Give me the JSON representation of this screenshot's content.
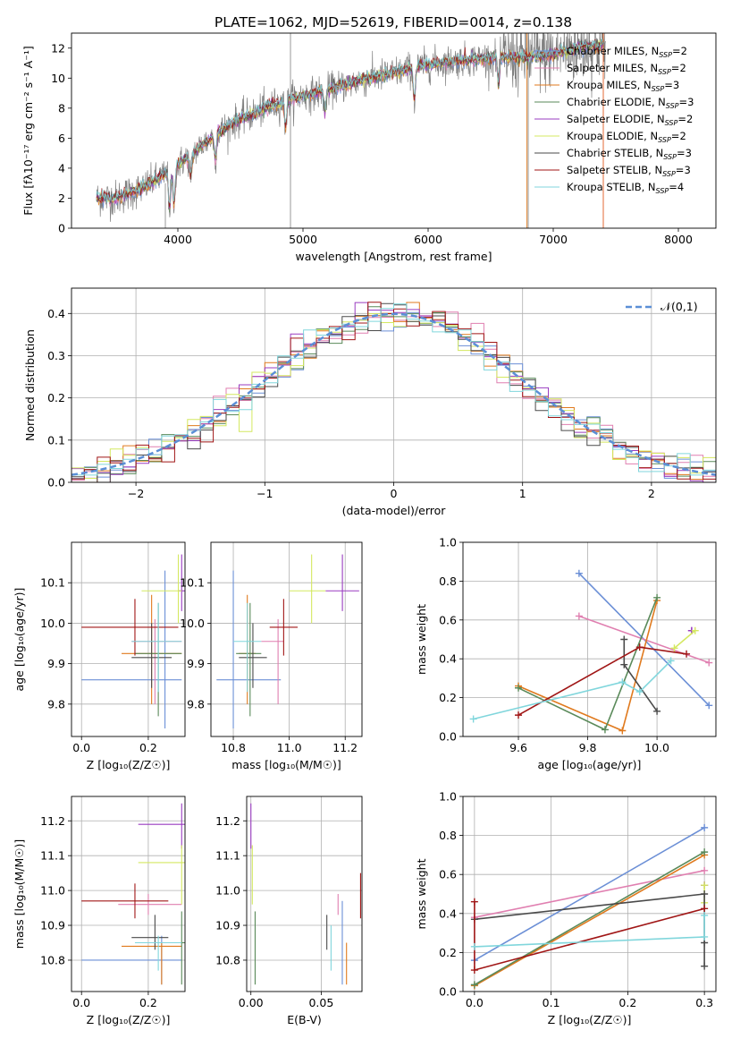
{
  "figure": {
    "title": "PLATE=1062, MJD=52619, FIBERID=0014, z=0.138"
  },
  "models": [
    {
      "name": "Chabrier MILES",
      "nssp": "2",
      "color": "#6b8fd6"
    },
    {
      "name": "Salpeter MILES",
      "nssp": "2",
      "color": "#e07fb0"
    },
    {
      "name": "Kroupa MILES",
      "nssp": "3",
      "color": "#e07a1e"
    },
    {
      "name": "Chabrier ELODIE",
      "nssp": "3",
      "color": "#5a8a5a"
    },
    {
      "name": "Salpeter ELODIE",
      "nssp": "2",
      "color": "#9a3cc0"
    },
    {
      "name": "Kroupa ELODIE",
      "nssp": "2",
      "color": "#d4e860"
    },
    {
      "name": "Chabrier STELIB",
      "nssp": "3",
      "color": "#4a4a4a"
    },
    {
      "name": "Salpeter STELIB",
      "nssp": "3",
      "color": "#a01616"
    },
    {
      "name": "Kroupa STELIB",
      "nssp": "4",
      "color": "#80d6dc"
    }
  ],
  "chart_data": [
    {
      "id": "spectrum",
      "type": "line",
      "xlabel": "wavelength [Angstrom, rest frame]",
      "ylabel": "Flux [fλ10⁻¹⁷ erg cm⁻² s⁻¹ A⁻¹]",
      "xlim": [
        3150,
        8300
      ],
      "ylim": [
        0,
        13
      ],
      "xticks": [
        4000,
        5000,
        6000,
        7000,
        8000
      ],
      "yticks": [
        0,
        2,
        4,
        6,
        8,
        10,
        12
      ],
      "observed_color": "#808080",
      "continuum": {
        "x": [
          3350,
          3500,
          3600,
          3700,
          3800,
          3900,
          4000,
          4100,
          4200,
          4300,
          4400,
          4500,
          4600,
          4700,
          4800,
          4900,
          5000,
          5200,
          5400,
          5600,
          5800,
          6000,
          6200,
          6400,
          6600,
          6800,
          7000,
          7200,
          7400
        ],
        "y": [
          2.0,
          2.0,
          2.3,
          2.6,
          3.1,
          3.6,
          4.2,
          4.9,
          5.6,
          6.2,
          6.8,
          7.3,
          7.6,
          8.0,
          8.3,
          8.6,
          8.8,
          9.2,
          9.7,
          10.1,
          10.5,
          10.9,
          11.1,
          11.3,
          11.4,
          11.4,
          11.6,
          12.0,
          12.2
        ]
      },
      "legend_loc": "upper right"
    },
    {
      "id": "residuals",
      "type": "histogram",
      "xlabel": "(data-model)/error",
      "ylabel": "Normed distribution",
      "xlim": [
        -2.5,
        2.5
      ],
      "ylim": [
        0,
        0.46
      ],
      "xticks": [
        -2,
        -1,
        0,
        1,
        2
      ],
      "yticks": [
        0.0,
        0.1,
        0.2,
        0.3,
        0.4
      ],
      "bin_width": 0.1,
      "grid": true,
      "reference_curve": {
        "name": "𝒩(0,1)",
        "color": "#5b8fd6",
        "style": "dashed"
      },
      "legend_loc": "upper right"
    },
    {
      "id": "age-vs-Z",
      "type": "errorbar",
      "xlabel": "Z [log₁₀(Z/Z☉)]",
      "ylabel": "age  [log₁₀(age/yr)]",
      "xlim": [
        -0.03,
        0.31
      ],
      "ylim": [
        9.72,
        10.2
      ],
      "xticks": [
        0.0,
        0.2
      ],
      "yticks": [
        9.8,
        9.9,
        10.0,
        10.1
      ],
      "grid": true,
      "points": [
        {
          "model": 0,
          "x": 0.25,
          "xlo": 0.0,
          "xhi": 0.3,
          "y": 9.86,
          "ylo": 9.74,
          "yhi": 10.13
        },
        {
          "model": 1,
          "x": 0.22,
          "xlo": 0.15,
          "xhi": 0.3,
          "y": 9.955,
          "ylo": 9.8,
          "yhi": 10.01
        },
        {
          "model": 2,
          "x": 0.21,
          "xlo": 0.12,
          "xhi": 0.3,
          "y": 9.925,
          "ylo": 9.8,
          "yhi": 10.07
        },
        {
          "model": 3,
          "x": 0.23,
          "xlo": 0.16,
          "xhi": 0.3,
          "y": 9.925,
          "ylo": 9.77,
          "yhi": 10.05
        },
        {
          "model": 4,
          "x": 0.3,
          "xlo": 0.29,
          "xhi": 0.31,
          "y": 10.08,
          "ylo": 10.03,
          "yhi": 10.17
        },
        {
          "model": 5,
          "x": 0.29,
          "xlo": 0.18,
          "xhi": 0.3,
          "y": 10.08,
          "ylo": 10.0,
          "yhi": 10.17
        },
        {
          "model": 6,
          "x": 0.21,
          "xlo": 0.15,
          "xhi": 0.27,
          "y": 9.915,
          "ylo": 9.84,
          "yhi": 10.0
        },
        {
          "model": 7,
          "x": 0.16,
          "xlo": 0.0,
          "xhi": 0.29,
          "y": 9.99,
          "ylo": 9.92,
          "yhi": 10.06
        },
        {
          "model": 8,
          "x": 0.23,
          "xlo": 0.15,
          "xhi": 0.3,
          "y": 9.955,
          "ylo": 9.83,
          "yhi": 10.05
        }
      ]
    },
    {
      "id": "age-vs-mass",
      "type": "errorbar",
      "xlabel": "mass [log₁₀(M/M☉)]",
      "ylabel": "",
      "xlim": [
        10.72,
        11.26
      ],
      "ylim": [
        9.72,
        10.2
      ],
      "xticks": [
        10.8,
        11.0,
        11.2
      ],
      "yticks": [
        9.8,
        9.9,
        10.0,
        10.1
      ],
      "grid": true,
      "points": [
        {
          "model": 0,
          "x": 10.8,
          "xlo": 10.74,
          "xhi": 10.97,
          "y": 9.86,
          "ylo": 9.74,
          "yhi": 10.13
        },
        {
          "model": 1,
          "x": 10.96,
          "xlo": 10.9,
          "xhi": 10.98,
          "y": 9.955,
          "ylo": 9.8,
          "yhi": 10.01
        },
        {
          "model": 2,
          "x": 10.85,
          "xlo": 10.82,
          "xhi": 10.88,
          "y": 9.925,
          "ylo": 9.8,
          "yhi": 10.07
        },
        {
          "model": 3,
          "x": 10.86,
          "xlo": 10.81,
          "xhi": 10.9,
          "y": 9.925,
          "ylo": 9.77,
          "yhi": 10.05
        },
        {
          "model": 4,
          "x": 11.19,
          "xlo": 11.13,
          "xhi": 11.25,
          "y": 10.08,
          "ylo": 10.03,
          "yhi": 10.17
        },
        {
          "model": 5,
          "x": 11.08,
          "xlo": 11.0,
          "xhi": 11.13,
          "y": 10.08,
          "ylo": 10.0,
          "yhi": 10.17
        },
        {
          "model": 6,
          "x": 10.87,
          "xlo": 10.82,
          "xhi": 10.92,
          "y": 9.915,
          "ylo": 9.84,
          "yhi": 10.0
        },
        {
          "model": 7,
          "x": 10.98,
          "xlo": 10.93,
          "xhi": 11.03,
          "y": 9.99,
          "ylo": 9.92,
          "yhi": 10.06
        },
        {
          "model": 8,
          "x": 10.85,
          "xlo": 10.8,
          "xhi": 10.9,
          "y": 9.955,
          "ylo": 9.83,
          "yhi": 10.05
        }
      ]
    },
    {
      "id": "weight-vs-age",
      "type": "line",
      "xlabel": "age  [log₁₀(age/yr)]",
      "ylabel": "mass weight",
      "xlim": [
        9.44,
        10.17
      ],
      "ylim": [
        0,
        1.0
      ],
      "xticks": [
        9.6,
        9.8,
        10.0
      ],
      "yticks": [
        0.0,
        0.2,
        0.4,
        0.6,
        0.8,
        1.0
      ],
      "grid": true,
      "series": [
        {
          "model": 0,
          "x": [
            9.775,
            10.15
          ],
          "y": [
            0.84,
            0.16
          ]
        },
        {
          "model": 1,
          "x": [
            9.775,
            10.15
          ],
          "y": [
            0.62,
            0.38
          ]
        },
        {
          "model": 2,
          "x": [
            9.6,
            9.9,
            10.0
          ],
          "y": [
            0.26,
            0.03,
            0.7
          ]
        },
        {
          "model": 3,
          "x": [
            9.6,
            9.85,
            10.0
          ],
          "y": [
            0.25,
            0.035,
            0.715
          ]
        },
        {
          "model": 4,
          "x": [
            10.1,
            10.1
          ],
          "y": [
            0.545,
            0.545
          ]
        },
        {
          "model": 5,
          "x": [
            10.05,
            10.11
          ],
          "y": [
            0.455,
            0.545
          ]
        },
        {
          "model": 6,
          "x": [
            9.905,
            9.905,
            10.0
          ],
          "y": [
            0.5,
            0.37,
            0.13
          ]
        },
        {
          "model": 7,
          "x": [
            9.6,
            9.95,
            10.085
          ],
          "y": [
            0.11,
            0.46,
            0.425
          ]
        },
        {
          "model": 8,
          "x": [
            9.47,
            9.9,
            9.95,
            10.04
          ],
          "y": [
            0.09,
            0.28,
            0.23,
            0.39
          ]
        }
      ]
    },
    {
      "id": "mass-vs-Z",
      "type": "errorbar",
      "xlabel": "Z [log₁₀(Z/Z☉)]",
      "ylabel": "mass [log₁₀(M/M☉)]",
      "xlim": [
        -0.03,
        0.31
      ],
      "ylim": [
        10.71,
        11.27
      ],
      "xticks": [
        0.0,
        0.2
      ],
      "yticks": [
        10.8,
        10.9,
        11.0,
        11.1,
        11.2
      ],
      "grid": true,
      "points": [
        {
          "model": 0,
          "x": 0.24,
          "xlo": 0.0,
          "xhi": 0.3,
          "y": 10.8,
          "ylo": 10.73,
          "yhi": 10.87
        },
        {
          "model": 1,
          "x": 0.2,
          "xlo": 0.11,
          "xhi": 0.3,
          "y": 10.96,
          "ylo": 10.93,
          "yhi": 10.99
        },
        {
          "model": 2,
          "x": 0.24,
          "xlo": 0.12,
          "xhi": 0.3,
          "y": 10.84,
          "ylo": 10.73,
          "yhi": 10.85
        },
        {
          "model": 3,
          "x": 0.3,
          "xlo": 0.3,
          "xhi": 0.31,
          "y": 10.85,
          "ylo": 10.73,
          "yhi": 10.94
        },
        {
          "model": 4,
          "x": 0.3,
          "xlo": 0.17,
          "xhi": 0.31,
          "y": 11.19,
          "ylo": 11.12,
          "yhi": 11.25
        },
        {
          "model": 5,
          "x": 0.3,
          "xlo": 0.17,
          "xhi": 0.31,
          "y": 11.08,
          "ylo": 10.96,
          "yhi": 11.13
        },
        {
          "model": 6,
          "x": 0.22,
          "xlo": 0.15,
          "xhi": 0.26,
          "y": 10.865,
          "ylo": 10.83,
          "yhi": 10.93
        },
        {
          "model": 7,
          "x": 0.16,
          "xlo": 0.0,
          "xhi": 0.26,
          "y": 10.97,
          "ylo": 10.92,
          "yhi": 11.02
        },
        {
          "model": 8,
          "x": 0.23,
          "xlo": 0.16,
          "xhi": 0.3,
          "y": 10.85,
          "ylo": 10.77,
          "yhi": 10.87
        }
      ]
    },
    {
      "id": "mass-vs-ebv",
      "type": "errorbar",
      "xlabel": "E(B-V)",
      "ylabel": "",
      "xlim": [
        -0.003,
        0.079
      ],
      "ylim": [
        10.71,
        11.27
      ],
      "xticks": [
        0.0,
        0.05
      ],
      "yticks": [
        10.8,
        10.9,
        11.0,
        11.1,
        11.2
      ],
      "grid": true,
      "points": [
        {
          "model": 0,
          "x": 0.065,
          "xlo": 0.065,
          "xhi": 0.065,
          "y": 10.8,
          "ylo": 10.73,
          "yhi": 10.97
        },
        {
          "model": 1,
          "x": 0.062,
          "xlo": 0.062,
          "xhi": 0.062,
          "y": 10.96,
          "ylo": 10.93,
          "yhi": 10.99
        },
        {
          "model": 2,
          "x": 0.068,
          "xlo": 0.068,
          "xhi": 0.068,
          "y": 10.84,
          "ylo": 10.73,
          "yhi": 10.85
        },
        {
          "model": 3,
          "x": 0.003,
          "xlo": 0.003,
          "xhi": 0.003,
          "y": 10.85,
          "ylo": 10.73,
          "yhi": 10.94
        },
        {
          "model": 4,
          "x": 0.0,
          "xlo": 0.0,
          "xhi": 0.0,
          "y": 11.19,
          "ylo": 11.12,
          "yhi": 11.25
        },
        {
          "model": 5,
          "x": 0.001,
          "xlo": 0.001,
          "xhi": 0.001,
          "y": 11.08,
          "ylo": 10.96,
          "yhi": 11.13
        },
        {
          "model": 6,
          "x": 0.054,
          "xlo": 0.054,
          "xhi": 0.054,
          "y": 10.865,
          "ylo": 10.83,
          "yhi": 10.93
        },
        {
          "model": 7,
          "x": 0.078,
          "xlo": 0.078,
          "xhi": 0.078,
          "y": 10.97,
          "ylo": 10.92,
          "yhi": 11.05
        },
        {
          "model": 8,
          "x": 0.057,
          "xlo": 0.057,
          "xhi": 0.057,
          "y": 10.85,
          "ylo": 10.77,
          "yhi": 10.9
        }
      ]
    },
    {
      "id": "weight-vs-Z",
      "type": "line",
      "xlabel": "Z [log₁₀(Z/Z☉)]",
      "ylabel": "mass weight",
      "xlim": [
        -0.015,
        0.315
      ],
      "ylim": [
        0,
        1.0
      ],
      "xticks": [
        0.0,
        0.1,
        0.2,
        0.3
      ],
      "yticks": [
        0.0,
        0.2,
        0.4,
        0.6,
        0.8,
        1.0
      ],
      "grid": true,
      "series": [
        {
          "model": 0,
          "x": [
            0.0,
            0.3
          ],
          "y": [
            0.16,
            0.84
          ]
        },
        {
          "model": 1,
          "x": [
            0.0,
            0.3
          ],
          "y": [
            0.38,
            0.62
          ]
        },
        {
          "model": 2,
          "x": [
            0.0,
            0.3
          ],
          "y": [
            0.03,
            0.7
          ]
        },
        {
          "model": 3,
          "x": [
            0.0,
            0.3
          ],
          "y": [
            0.035,
            0.715
          ]
        },
        {
          "model": 4,
          "x": [
            0.3,
            0.3
          ],
          "y": [
            0.545,
            0.545
          ]
        },
        {
          "model": 5,
          "x": [
            0.3,
            0.3
          ],
          "y": [
            0.455,
            0.545
          ]
        },
        {
          "model": 6,
          "x": [
            0.0,
            0.3,
            0.3,
            0.3
          ],
          "y": [
            0.37,
            0.5,
            0.25,
            0.13
          ]
        },
        {
          "model": 7,
          "x": [
            0.0,
            0.0,
            0.3
          ],
          "y": [
            0.46,
            0.11,
            0.425
          ]
        },
        {
          "model": 8,
          "x": [
            0.0,
            0.3,
            0.3
          ],
          "y": [
            0.23,
            0.28,
            0.39
          ]
        }
      ]
    }
  ]
}
